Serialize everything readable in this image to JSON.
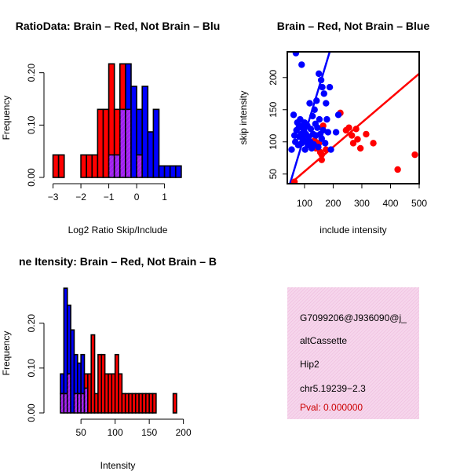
{
  "colors": {
    "red": "#ff0000",
    "blue": "#0000ff",
    "purple": "#a020f0",
    "info_bg": "#f6d6ec",
    "pval": "#cc0000"
  },
  "chart_data": [
    {
      "type": "bar",
      "subtype": "overlaid_histogram",
      "title": "RatioData: Brain – Red, Not Brain – Blu",
      "xlabel": "Log2 Ratio Skip/Include",
      "ylabel": "Frequency",
      "xlim": [
        -3.1,
        1.8
      ],
      "ylim": [
        0,
        0.24
      ],
      "xticks": [
        -3,
        -2,
        -1,
        0,
        1
      ],
      "xtick_labels": [
        "−3",
        "−2",
        "−1",
        "0",
        "1"
      ],
      "yticks": [
        0.0,
        0.1,
        0.2
      ],
      "ytick_labels": [
        "0.00",
        "0.10",
        "0.20"
      ],
      "bin_edges": [
        -3.0,
        -2.8,
        -2.6,
        -2.4,
        -2.2,
        -2.0,
        -1.8,
        -1.6,
        -1.4,
        -1.2,
        -1.0,
        -0.8,
        -0.6,
        -0.4,
        -0.2,
        0.0,
        0.2,
        0.4,
        0.6,
        0.8,
        1.0,
        1.2,
        1.4,
        1.6
      ],
      "series": [
        {
          "name": "Brain",
          "color": "red",
          "values": [
            0.043,
            0.043,
            0,
            0,
            0,
            0.043,
            0.043,
            0.043,
            0.13,
            0.13,
            0.217,
            0.13,
            0.217,
            0.13,
            0,
            0.043,
            0,
            0,
            0,
            0,
            0,
            0,
            0
          ]
        },
        {
          "name": "Not Brain",
          "color": "blue",
          "values": [
            0,
            0,
            0,
            0,
            0,
            0,
            0,
            0,
            0,
            0,
            0.043,
            0.043,
            0.13,
            0.217,
            0.174,
            0.13,
            0.174,
            0.087,
            0.13,
            0.022,
            0.022,
            0.022,
            0.022
          ]
        }
      ]
    },
    {
      "type": "scatter",
      "title": "Brain – Red, Not Brain – Blue",
      "xlabel": "include intensity",
      "ylabel": "skip intensity",
      "xlim": [
        40,
        500
      ],
      "ylim": [
        35,
        240
      ],
      "xticks": [
        100,
        200,
        300,
        400,
        500
      ],
      "xtick_labels": [
        "100",
        "200",
        "300",
        "400",
        "500"
      ],
      "yticks": [
        50,
        100,
        150,
        200
      ],
      "ytick_labels": [
        "50",
        "100",
        "150",
        "200"
      ],
      "series": [
        {
          "name": "Brain",
          "color": "red",
          "points": [
            [
              65,
              38
            ],
            [
              135,
              102
            ],
            [
              140,
              90
            ],
            [
              150,
              98
            ],
            [
              155,
              84
            ],
            [
              160,
              80
            ],
            [
              160,
              72
            ],
            [
              165,
              125
            ],
            [
              175,
              88
            ],
            [
              225,
              145
            ],
            [
              245,
              118
            ],
            [
              255,
              122
            ],
            [
              265,
              110
            ],
            [
              270,
              98
            ],
            [
              280,
              120
            ],
            [
              285,
              104
            ],
            [
              295,
              90
            ],
            [
              315,
              112
            ],
            [
              340,
              98
            ],
            [
              425,
              57
            ],
            [
              485,
              80
            ]
          ],
          "fit": {
            "slope": 0.38,
            "intercept": 16
          }
        },
        {
          "name": "Not Brain",
          "color": "blue",
          "points": [
            [
              70,
              238
            ],
            [
              90,
              220
            ],
            [
              55,
              88
            ],
            [
              62,
              142
            ],
            [
              65,
              110
            ],
            [
              68,
              100
            ],
            [
              72,
              118
            ],
            [
              75,
              130
            ],
            [
              78,
              95
            ],
            [
              80,
              122
            ],
            [
              82,
              108
            ],
            [
              85,
              135
            ],
            [
              88,
              112
            ],
            [
              90,
              98
            ],
            [
              92,
              125
            ],
            [
              95,
              104
            ],
            [
              98,
              118
            ],
            [
              100,
              130
            ],
            [
              102,
              88
            ],
            [
              105,
              112
            ],
            [
              108,
              100
            ],
            [
              110,
              125
            ],
            [
              112,
              95
            ],
            [
              115,
              108
            ],
            [
              118,
              160
            ],
            [
              120,
              100
            ],
            [
              122,
              120
            ],
            [
              125,
              90
            ],
            [
              128,
              140
            ],
            [
              130,
              112
            ],
            [
              132,
              96
            ],
            [
              135,
              150
            ],
            [
              138,
              128
            ],
            [
              140,
              110
            ],
            [
              142,
              164
            ],
            [
              145,
              122
            ],
            [
              148,
              92
            ],
            [
              150,
              206
            ],
            [
              152,
              135
            ],
            [
              155,
              112
            ],
            [
              158,
              196
            ],
            [
              160,
              105
            ],
            [
              162,
              185
            ],
            [
              165,
              118
            ],
            [
              168,
              175
            ],
            [
              172,
              98
            ],
            [
              175,
              160
            ],
            [
              178,
              135
            ],
            [
              182,
              115
            ],
            [
              188,
              185
            ],
            [
              192,
              88
            ],
            [
              210,
              115
            ],
            [
              218,
              142
            ]
          ],
          "fit": {
            "slope": 1.48,
            "intercept": -38
          }
        }
      ]
    },
    {
      "type": "bar",
      "subtype": "overlaid_histogram",
      "title": "ne Itensity: Brain – Red, Not Brain – B",
      "xlabel": "Intensity",
      "ylabel": "Frequency",
      "xlim": [
        5,
        205
      ],
      "ylim": [
        0,
        0.28
      ],
      "xticks": [
        50,
        100,
        150,
        200
      ],
      "xtick_labels": [
        "50",
        "100",
        "150",
        "200"
      ],
      "yticks": [
        0.0,
        0.1,
        0.2
      ],
      "ytick_labels": [
        "0.00",
        "0.10",
        "0.20"
      ],
      "bin_edges": [
        20,
        25,
        30,
        35,
        40,
        45,
        50,
        55,
        60,
        65,
        70,
        75,
        80,
        85,
        90,
        95,
        100,
        105,
        110,
        115,
        120,
        125,
        130,
        135,
        140,
        145,
        150,
        155,
        160,
        165,
        170,
        175,
        180,
        185,
        190,
        195
      ],
      "series": [
        {
          "name": "Brain",
          "color": "red",
          "values": [
            0.043,
            0.043,
            0.087,
            0,
            0.043,
            0.043,
            0.043,
            0.087,
            0.087,
            0.174,
            0.043,
            0.13,
            0.13,
            0.087,
            0.087,
            0.087,
            0.13,
            0.087,
            0.043,
            0.043,
            0.043,
            0.043,
            0.043,
            0.043,
            0.043,
            0.043,
            0.043,
            0.043,
            0,
            0,
            0,
            0,
            0,
            0.043,
            0
          ]
        },
        {
          "name": "Not Brain",
          "color": "blue",
          "values": [
            0.087,
            0.278,
            0.24,
            0.185,
            0.13,
            0.111,
            0.13,
            0.055,
            0,
            0,
            0,
            0,
            0,
            0,
            0,
            0,
            0,
            0,
            0,
            0,
            0,
            0,
            0,
            0,
            0,
            0,
            0,
            0,
            0,
            0,
            0,
            0,
            0,
            0,
            0
          ]
        }
      ]
    }
  ],
  "info_box": {
    "event_id": "G7099206@J936090@j_",
    "event_type": "altCassette",
    "gene": "Hip2",
    "location": "chr5.19239−2.3",
    "pval": "Pval: 0.000000"
  }
}
